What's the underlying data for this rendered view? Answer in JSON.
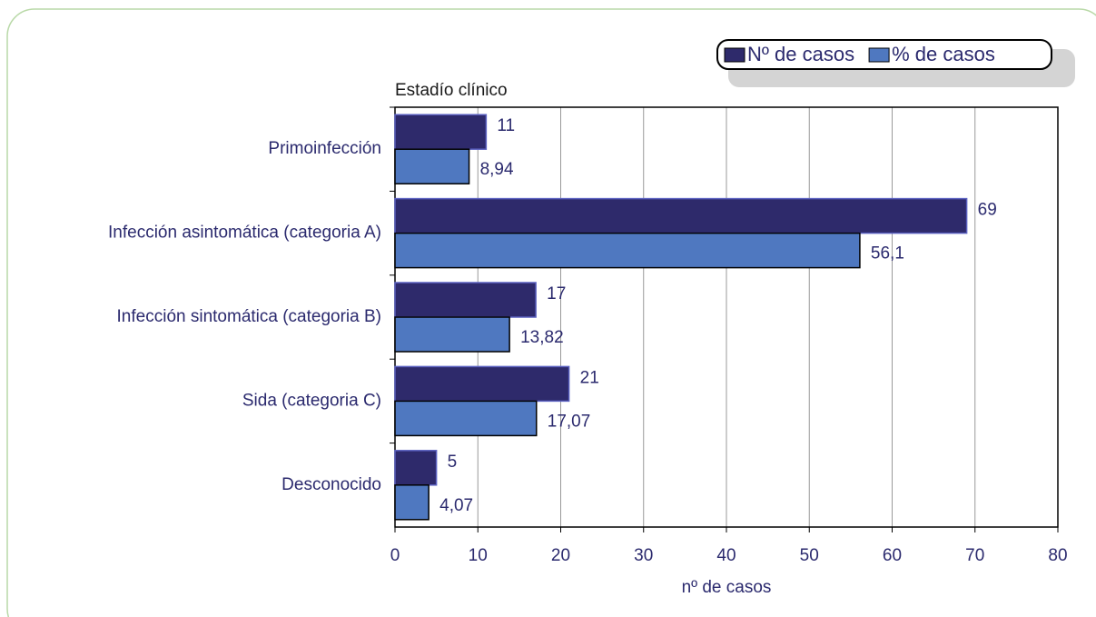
{
  "chart_data": {
    "type": "barh",
    "category_axis_title": "Estadío clínico",
    "x_label": "nº de casos",
    "categories": [
      "Primoinfección",
      "Infección asintomática (categoria A)",
      "Infección sintomática (categoria B)",
      "Sida (categoria C)",
      "Desconocido"
    ],
    "series": [
      {
        "name": "Nº de casos",
        "color": "#2e2a6b",
        "values": [
          11,
          69,
          17,
          21,
          5
        ]
      },
      {
        "name": "% de casos",
        "color": "#4f78c0",
        "values": [
          8.94,
          56.1,
          13.82,
          17.07,
          4.07
        ],
        "value_labels": [
          "8,94",
          "56,1",
          "13,82",
          "17,07",
          "4,07"
        ]
      }
    ],
    "xlim": [
      0,
      80
    ],
    "xticks": [
      0,
      10,
      20,
      30,
      40,
      50,
      60,
      70,
      80
    ],
    "grid": true,
    "legend": "upper right"
  }
}
